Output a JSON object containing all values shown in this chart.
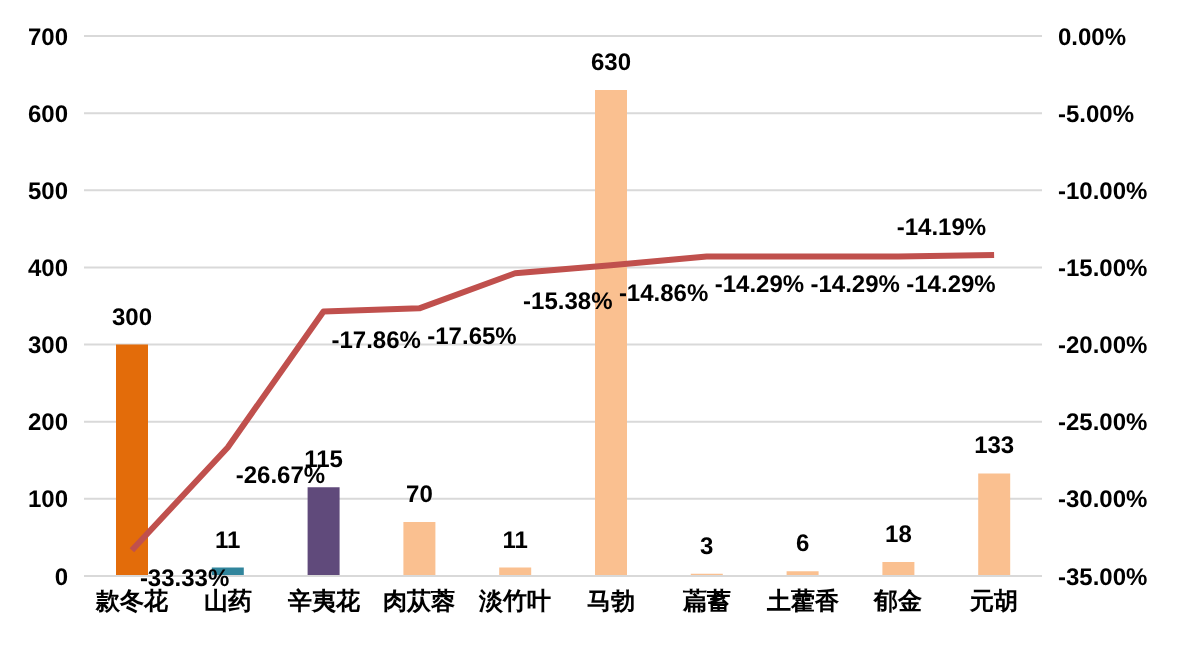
{
  "chart_data": {
    "type": "bar",
    "categories": [
      "款冬花",
      "山药",
      "辛夷花",
      "肉苁蓉",
      "淡竹叶",
      "马勃",
      "萹蓄",
      "土藿香",
      "郁金",
      "元胡"
    ],
    "series": [
      {
        "colors": [
          "#e36c0a",
          "#31859c",
          "#604a7b",
          "#fac090",
          "#fac090",
          "#fac090",
          "#fac090",
          "#fac090",
          "#fac090",
          "#fac090"
        ],
        "values": [
          300,
          11,
          115,
          70,
          11,
          630,
          3,
          6,
          18,
          133
        ],
        "value_labels": [
          "300",
          "11",
          "115",
          "70",
          "11",
          "630",
          "3",
          "6",
          "18",
          "133"
        ]
      },
      {
        "type": "line",
        "axis": "y2",
        "color": "#c0504d",
        "values": [
          -33.33,
          -26.67,
          -17.86,
          -17.65,
          -15.38,
          -14.86,
          -14.29,
          -14.29,
          -14.29,
          -14.19
        ],
        "value_labels": [
          "-33.33%",
          "-26.67%",
          "-17.86%",
          "-17.65%",
          "-15.38%",
          "-14.86%",
          "-14.29%",
          "-14.29%",
          "-14.29%",
          "-14.19%"
        ]
      }
    ],
    "ylim": [
      0,
      700
    ],
    "yticks": [
      0,
      100,
      200,
      300,
      400,
      500,
      600,
      700
    ],
    "y2lim": [
      -35,
      0
    ],
    "y2ticks": [
      {
        "value": -35,
        "label": "-35.00%"
      },
      {
        "value": -30,
        "label": "-30.00%"
      },
      {
        "value": -25,
        "label": "-25.00%"
      },
      {
        "value": -20,
        "label": "-20.00%"
      },
      {
        "value": -15,
        "label": "-15.00%"
      },
      {
        "value": -10,
        "label": "-10.00%"
      },
      {
        "value": -5,
        "label": "-5.00%"
      },
      {
        "value": 0,
        "label": "0.00%"
      }
    ],
    "grid": "y",
    "marker": "none"
  }
}
